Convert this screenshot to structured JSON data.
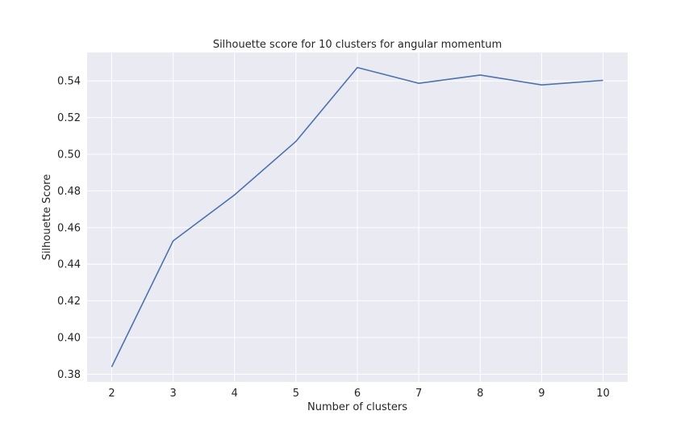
{
  "chart_data": {
    "type": "line",
    "title": "Silhouette score for 10 clusters for angular momentum",
    "xlabel": "Number of clusters",
    "ylabel": "Silhouette Score",
    "x": [
      2,
      3,
      4,
      5,
      6,
      7,
      8,
      9,
      10
    ],
    "series": [
      {
        "values": [
          0.384,
          0.4527,
          0.4778,
          0.507,
          0.5473,
          0.5387,
          0.5432,
          0.5378,
          0.5403
        ]
      }
    ],
    "xticks": [
      "2",
      "3",
      "4",
      "5",
      "6",
      "7",
      "8",
      "9",
      "10"
    ],
    "yticks": [
      "0.38",
      "0.40",
      "0.42",
      "0.44",
      "0.46",
      "0.48",
      "0.50",
      "0.52",
      "0.54"
    ],
    "xlim": [
      1.6,
      10.4
    ],
    "ylim": [
      0.3758,
      0.5555
    ],
    "grid": true,
    "colors": {
      "plot_background": "#eaeaf2",
      "grid": "#ffffff",
      "line": "#4c72b0"
    }
  }
}
